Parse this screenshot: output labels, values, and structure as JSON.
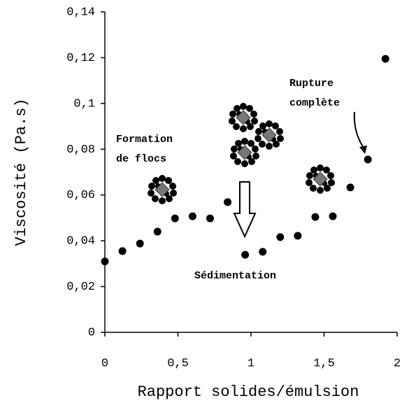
{
  "chart_data": {
    "type": "scatter",
    "x_label": "Rapport solides/émulsion",
    "y_label": "Viscosité (Pa.s)",
    "x": [
      0,
      0.12,
      0.24,
      0.36,
      0.48,
      0.6,
      0.72,
      0.84,
      0.96,
      1.08,
      1.2,
      1.32,
      1.44,
      1.56,
      1.68,
      1.8,
      1.92
    ],
    "values": [
      0.031,
      0.0355,
      0.0388,
      0.044,
      0.0498,
      0.0507,
      0.0498,
      0.0569,
      0.0339,
      0.0352,
      0.0416,
      0.0422,
      0.0504,
      0.0507,
      0.0633,
      0.0755,
      0.1195
    ],
    "color": "#000000",
    "xlim": [
      0,
      2
    ],
    "ylim": [
      0,
      0.14
    ],
    "xticks": [
      0,
      {
        "value": 0.5,
        "label": "0,5"
      },
      1,
      {
        "value": 1.5,
        "label": "1,5"
      },
      2
    ],
    "yticks": [
      0,
      {
        "value": 0.02,
        "label": "0,02"
      },
      {
        "value": 0.04,
        "label": "0,04"
      },
      {
        "value": 0.06,
        "label": "0,06"
      },
      {
        "value": 0.08,
        "label": "0,08"
      },
      {
        "value": 0.1,
        "label": "0,1"
      },
      {
        "value": 0.12,
        "label": "0,12"
      },
      {
        "value": 0.14,
        "label": "0,14"
      }
    ],
    "annotations": [
      [
        "Formation",
        "de flocs"
      ],
      [
        "Rupture",
        "complète"
      ],
      [
        "Sédimentation"
      ]
    ]
  }
}
